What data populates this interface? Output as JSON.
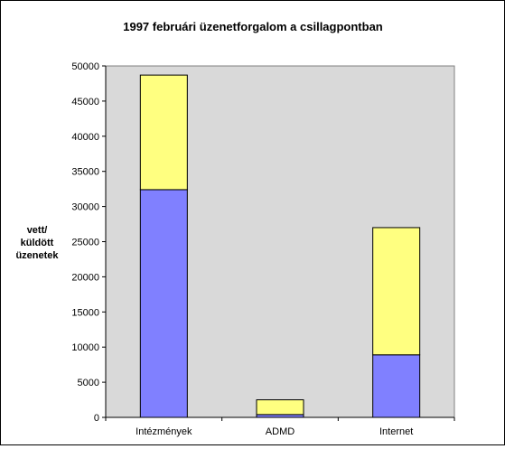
{
  "chart_data": {
    "type": "bar",
    "stacked": true,
    "title": "1997 februári üzenetforgalom a csillagpontban",
    "ylabel_lines": [
      "vett/",
      "küldött",
      "üzenetek"
    ],
    "xlabel": "",
    "categories": [
      "Intézmények",
      "ADMD",
      "Internet"
    ],
    "series": [
      {
        "color": "#8080ff",
        "values": [
          32400,
          400,
          8900
        ]
      },
      {
        "color": "#ffff80",
        "values": [
          16300,
          2100,
          18100
        ]
      }
    ],
    "ylim": [
      0,
      50000
    ],
    "yticks": [
      0,
      5000,
      10000,
      15000,
      20000,
      25000,
      30000,
      35000,
      40000,
      45000,
      50000
    ],
    "grid": false,
    "legend": "none",
    "plot_background": "#d9d9d9"
  }
}
